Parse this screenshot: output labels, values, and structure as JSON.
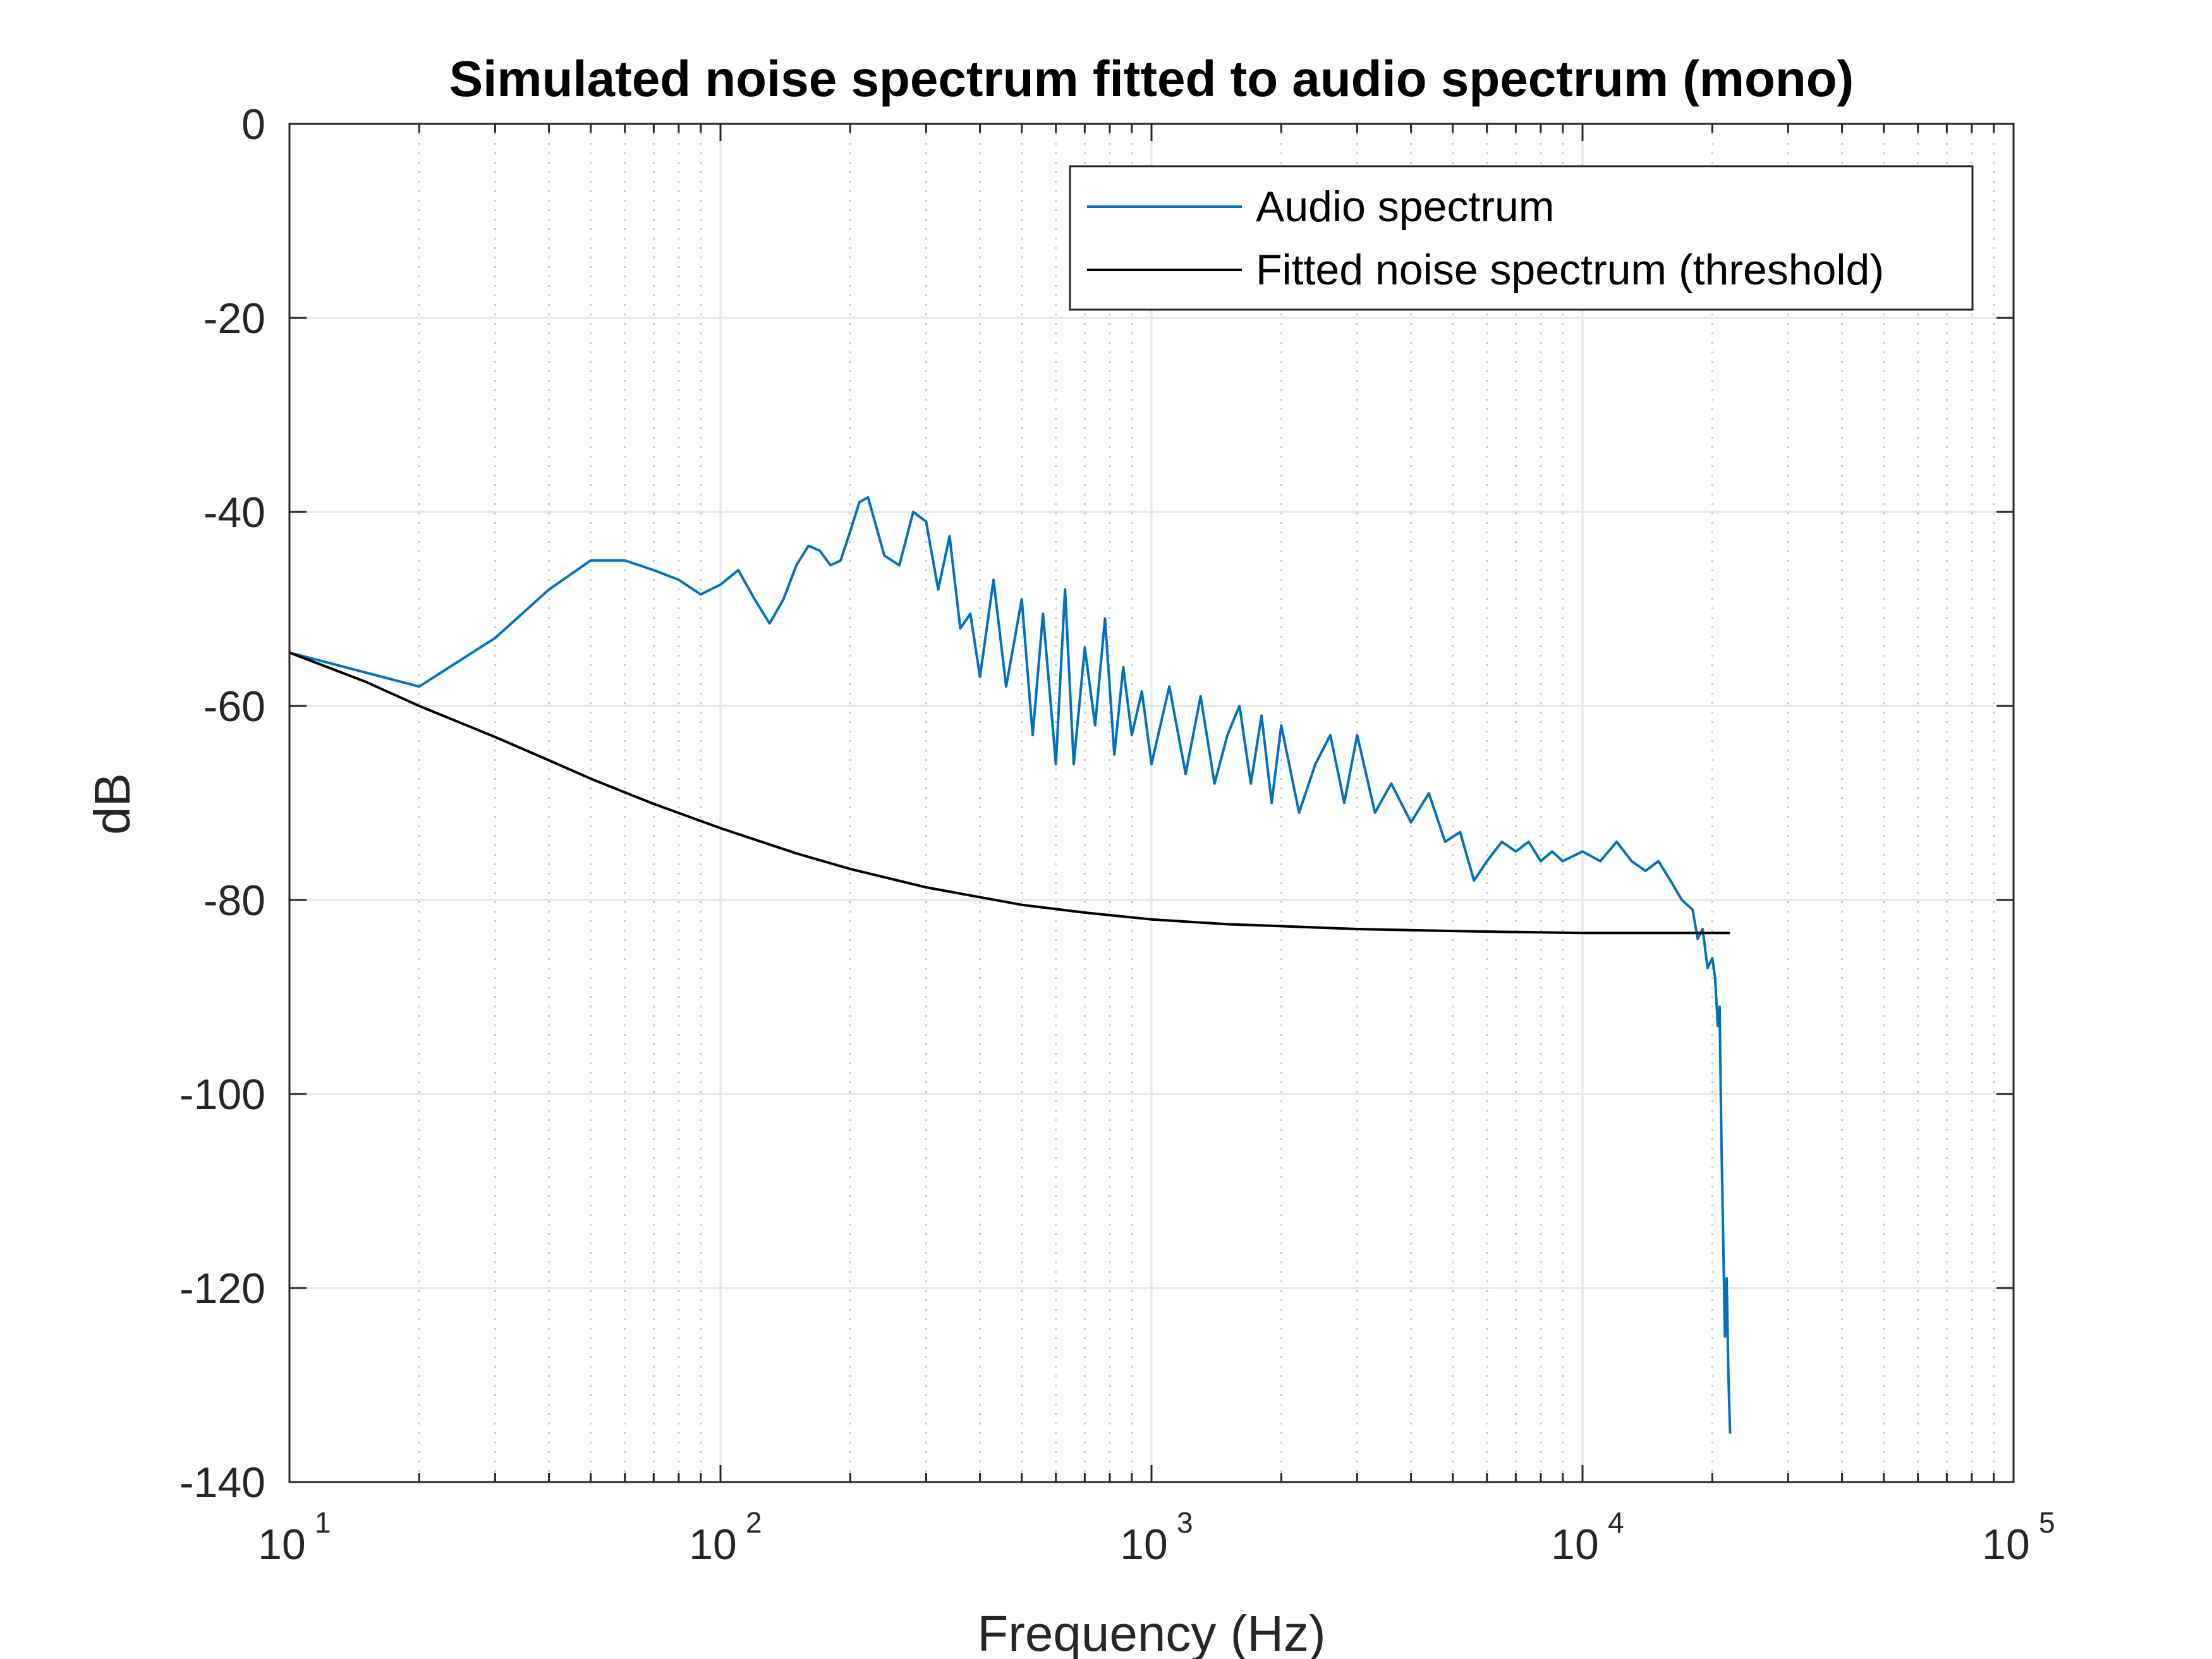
{
  "chart_data": {
    "type": "line",
    "title": "Simulated noise spectrum fitted to audio spectrum (mono)",
    "xlabel": "Frequency (Hz)",
    "ylabel": "dB",
    "xscale": "log",
    "xlim": [
      10,
      100000
    ],
    "ylim": [
      -140,
      0
    ],
    "grid": true,
    "legend_position": "top-right",
    "x_ticks": [
      {
        "base": "10",
        "exp": "1"
      },
      {
        "base": "10",
        "exp": "2"
      },
      {
        "base": "10",
        "exp": "3"
      },
      {
        "base": "10",
        "exp": "4"
      },
      {
        "base": "10",
        "exp": "5"
      }
    ],
    "y_ticks": [
      "0",
      "-20",
      "-40",
      "-60",
      "-80",
      "-100",
      "-120",
      "-140"
    ],
    "y_tick_values": [
      0,
      -20,
      -40,
      -60,
      -80,
      -100,
      -120,
      -140
    ],
    "series": [
      {
        "name": "Audio spectrum",
        "color": "#0072BD",
        "x": [
          10,
          20,
          30,
          40,
          50,
          60,
          70,
          80,
          90,
          100,
          110,
          120,
          130,
          140,
          150,
          160,
          170,
          180,
          190,
          200,
          210,
          220,
          240,
          260,
          280,
          300,
          320,
          340,
          360,
          380,
          400,
          430,
          460,
          500,
          530,
          560,
          600,
          630,
          660,
          700,
          740,
          780,
          820,
          860,
          900,
          950,
          1000,
          1100,
          1200,
          1300,
          1400,
          1500,
          1600,
          1700,
          1800,
          1900,
          2000,
          2200,
          2400,
          2600,
          2800,
          3000,
          3300,
          3600,
          4000,
          4400,
          4800,
          5200,
          5600,
          6000,
          6500,
          7000,
          7500,
          8000,
          8500,
          9000,
          10000,
          11000,
          12000,
          13000,
          14000,
          15000,
          16000,
          17000,
          18000,
          18500,
          19000,
          19500,
          20000,
          20300,
          20600,
          20800,
          21000,
          21200,
          21400,
          21600,
          21800,
          22000
        ],
        "y": [
          -54.5,
          -58,
          -53,
          -48,
          -45,
          -45,
          -46,
          -47,
          -48.5,
          -47.5,
          -46,
          -49,
          -51.5,
          -49,
          -45.5,
          -43.5,
          -44,
          -45.5,
          -45,
          -42,
          -39,
          -38.5,
          -44.5,
          -45.5,
          -40,
          -41,
          -48,
          -42.5,
          -52,
          -50.5,
          -57,
          -47,
          -58,
          -49,
          -63,
          -50.5,
          -66,
          -48,
          -66,
          -54,
          -62,
          -51,
          -65,
          -56,
          -63,
          -58.5,
          -66,
          -58,
          -67,
          -59,
          -68,
          -63,
          -60,
          -68,
          -61,
          -70,
          -62,
          -71,
          -66,
          -63,
          -70,
          -63,
          -71,
          -68,
          -72,
          -69,
          -74,
          -73,
          -78,
          -76,
          -74,
          -75,
          -74,
          -76,
          -75,
          -76,
          -75,
          -76,
          -74,
          -76,
          -77,
          -76,
          -78,
          -80,
          -81,
          -84,
          -83,
          -87,
          -86,
          -88,
          -93,
          -91,
          -105,
          -115,
          -125,
          -119,
          -129,
          -135
        ]
      },
      {
        "name": "Fitted noise spectrum (threshold)",
        "color": "#000000",
        "x": [
          10,
          15,
          20,
          30,
          40,
          50,
          70,
          100,
          150,
          200,
          300,
          500,
          700,
          1000,
          1500,
          2000,
          3000,
          5000,
          7000,
          10000,
          15000,
          20000,
          22000
        ],
        "y": [
          -54.5,
          -57.5,
          -60,
          -63.2,
          -65.6,
          -67.5,
          -70.1,
          -72.6,
          -75.2,
          -76.8,
          -78.7,
          -80.5,
          -81.3,
          -82,
          -82.5,
          -82.7,
          -83,
          -83.2,
          -83.3,
          -83.4,
          -83.4,
          -83.4,
          -83.4
        ]
      }
    ]
  }
}
